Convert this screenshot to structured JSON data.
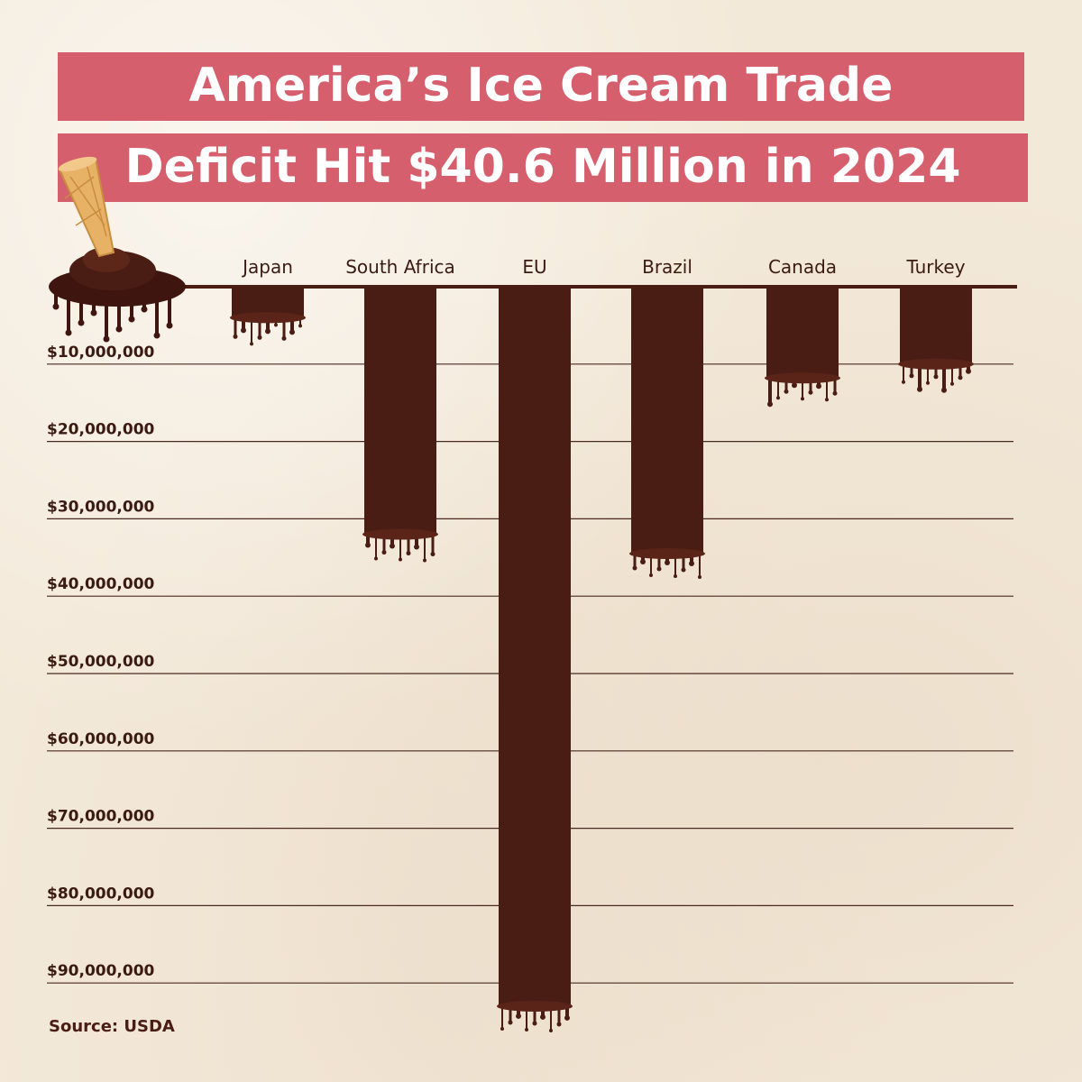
{
  "title": {
    "line1": "America’s Ice Cream Trade",
    "line2": "Deficit Hit $40.6 Million in 2024"
  },
  "source": "Source: USDA",
  "colors": {
    "background": "#f3e9d9",
    "title_band": "#d65f6d",
    "title_text": "#ffffff",
    "bar": "#4a1d14",
    "gridline": "#4a2a20",
    "axis_text": "#3a1a12",
    "cone": "#e8b266"
  },
  "decoration": {
    "icon": "melted-ice-cream-cone-icon"
  },
  "chart_data": {
    "type": "bar",
    "orientation": "vertical-down",
    "categories": [
      "Japan",
      "South Africa",
      "EU",
      "Brazil",
      "Canada",
      "Turkey"
    ],
    "values": [
      4000000,
      32000000,
      93000000,
      34500000,
      11800000,
      10000000
    ],
    "ylim": [
      0,
      90000000
    ],
    "yticks": [
      10000000,
      20000000,
      30000000,
      40000000,
      50000000,
      60000000,
      70000000,
      80000000,
      90000000
    ],
    "ytick_labels": [
      "$10,000,000",
      "$20,000,000",
      "$30,000,000",
      "$40,000,000",
      "$50,000,000",
      "$60,000,000",
      "$70,000,000",
      "$80,000,000",
      "$90,000,000"
    ],
    "grid": true,
    "legend": "none",
    "category_labels_position": "top"
  }
}
